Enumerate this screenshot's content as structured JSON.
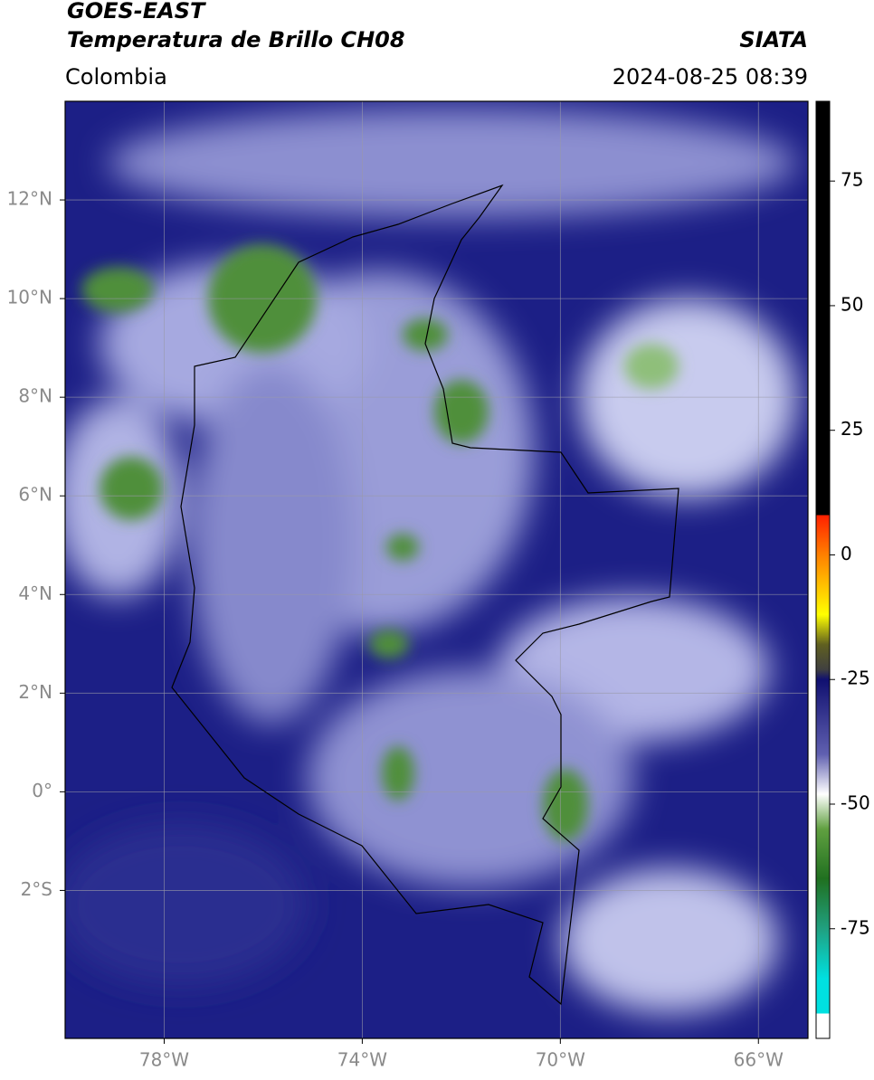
{
  "header": {
    "title": "GOES-EAST",
    "subtitle": "Temperatura de Brillo CH08",
    "agency": "SIATA",
    "region": "Colombia",
    "datetime": "2024-08-25 08:39"
  },
  "map": {
    "xlim": [
      -80,
      -65
    ],
    "ylim": [
      -5,
      14
    ],
    "xticks": [
      {
        "value": -78,
        "label": "78°W"
      },
      {
        "value": -74,
        "label": "74°W"
      },
      {
        "value": -70,
        "label": "70°W"
      },
      {
        "value": -66,
        "label": "66°W"
      }
    ],
    "yticks": [
      {
        "value": 12,
        "label": "12°N"
      },
      {
        "value": 10,
        "label": "10°N"
      },
      {
        "value": 8,
        "label": "8°N"
      },
      {
        "value": 6,
        "label": "6°N"
      },
      {
        "value": 4,
        "label": "4°N"
      },
      {
        "value": 2,
        "label": "2°N"
      },
      {
        "value": 0,
        "label": "0°"
      },
      {
        "value": -2,
        "label": "2°S"
      }
    ],
    "grid": true
  },
  "colorbar": {
    "lim": [
      -97,
      91
    ],
    "ticks": [
      75,
      50,
      25,
      0,
      -25,
      -50,
      -75
    ],
    "stops": [
      {
        "value": 91,
        "color": "#000000"
      },
      {
        "value": 8,
        "color": "#000000"
      },
      {
        "value": 8,
        "color": "#ff2000"
      },
      {
        "value": 0,
        "color": "#ff8000"
      },
      {
        "value": -12,
        "color": "#ffff00"
      },
      {
        "value": -18,
        "color": "#606020"
      },
      {
        "value": -23,
        "color": "#404040"
      },
      {
        "value": -25,
        "color": "#101070"
      },
      {
        "value": -40,
        "color": "#6060b0"
      },
      {
        "value": -48,
        "color": "#ffffff"
      },
      {
        "value": -55,
        "color": "#60a040"
      },
      {
        "value": -65,
        "color": "#207020"
      },
      {
        "value": -75,
        "color": "#20a080"
      },
      {
        "value": -85,
        "color": "#00e0e0"
      },
      {
        "value": -92,
        "color": "#00e0e0"
      },
      {
        "value": -92,
        "color": "#ffffff"
      },
      {
        "value": -97,
        "color": "#ffffff"
      }
    ]
  }
}
